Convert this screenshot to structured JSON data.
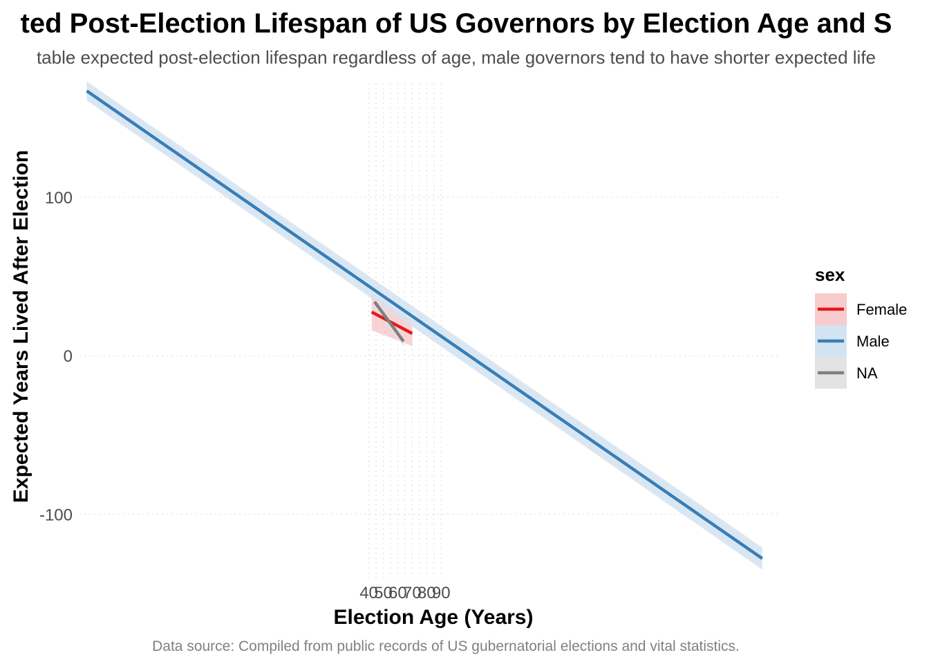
{
  "chart_data": {
    "type": "line",
    "title": "ted Post-Election Lifespan of US Governors by Election Age and S",
    "subtitle": "table expected post-election lifespan regardless of age, male governors tend to have shorter expected life",
    "xlabel": "Election Age (Years)",
    "ylabel": "Expected Years Lived After Election",
    "caption": "Data source: Compiled from public records of US gubernatorial elections and vital statistics.",
    "xlim": [
      -160,
      325
    ],
    "ylim": [
      -140,
      172
    ],
    "x_ticks": [
      40,
      50,
      60,
      70,
      80,
      90
    ],
    "y_ticks": [
      -100,
      0,
      100
    ],
    "grid": true,
    "legend": {
      "title": "sex",
      "position": "right"
    },
    "series": [
      {
        "name": "Female",
        "color": "#e41a1c",
        "fill": "#f8cbcc",
        "x": [
          42,
          70
        ],
        "y": [
          27.5,
          14
        ],
        "ci_lower": [
          16,
          6
        ],
        "ci_upper": [
          39,
          22
        ]
      },
      {
        "name": "Male",
        "color": "#377eb8",
        "fill": "#d3e3f1",
        "x": [
          -155,
          312
        ],
        "y": [
          167,
          -128
        ],
        "ci_lower": [
          161,
          -135
        ],
        "ci_upper": [
          173,
          -121
        ]
      },
      {
        "name": "NA",
        "color": "#808080",
        "fill": "#e3e3e3",
        "x": [
          44,
          64
        ],
        "y": [
          34,
          9
        ],
        "ci_lower": [
          30,
          6
        ],
        "ci_upper": [
          38,
          12
        ]
      }
    ]
  }
}
